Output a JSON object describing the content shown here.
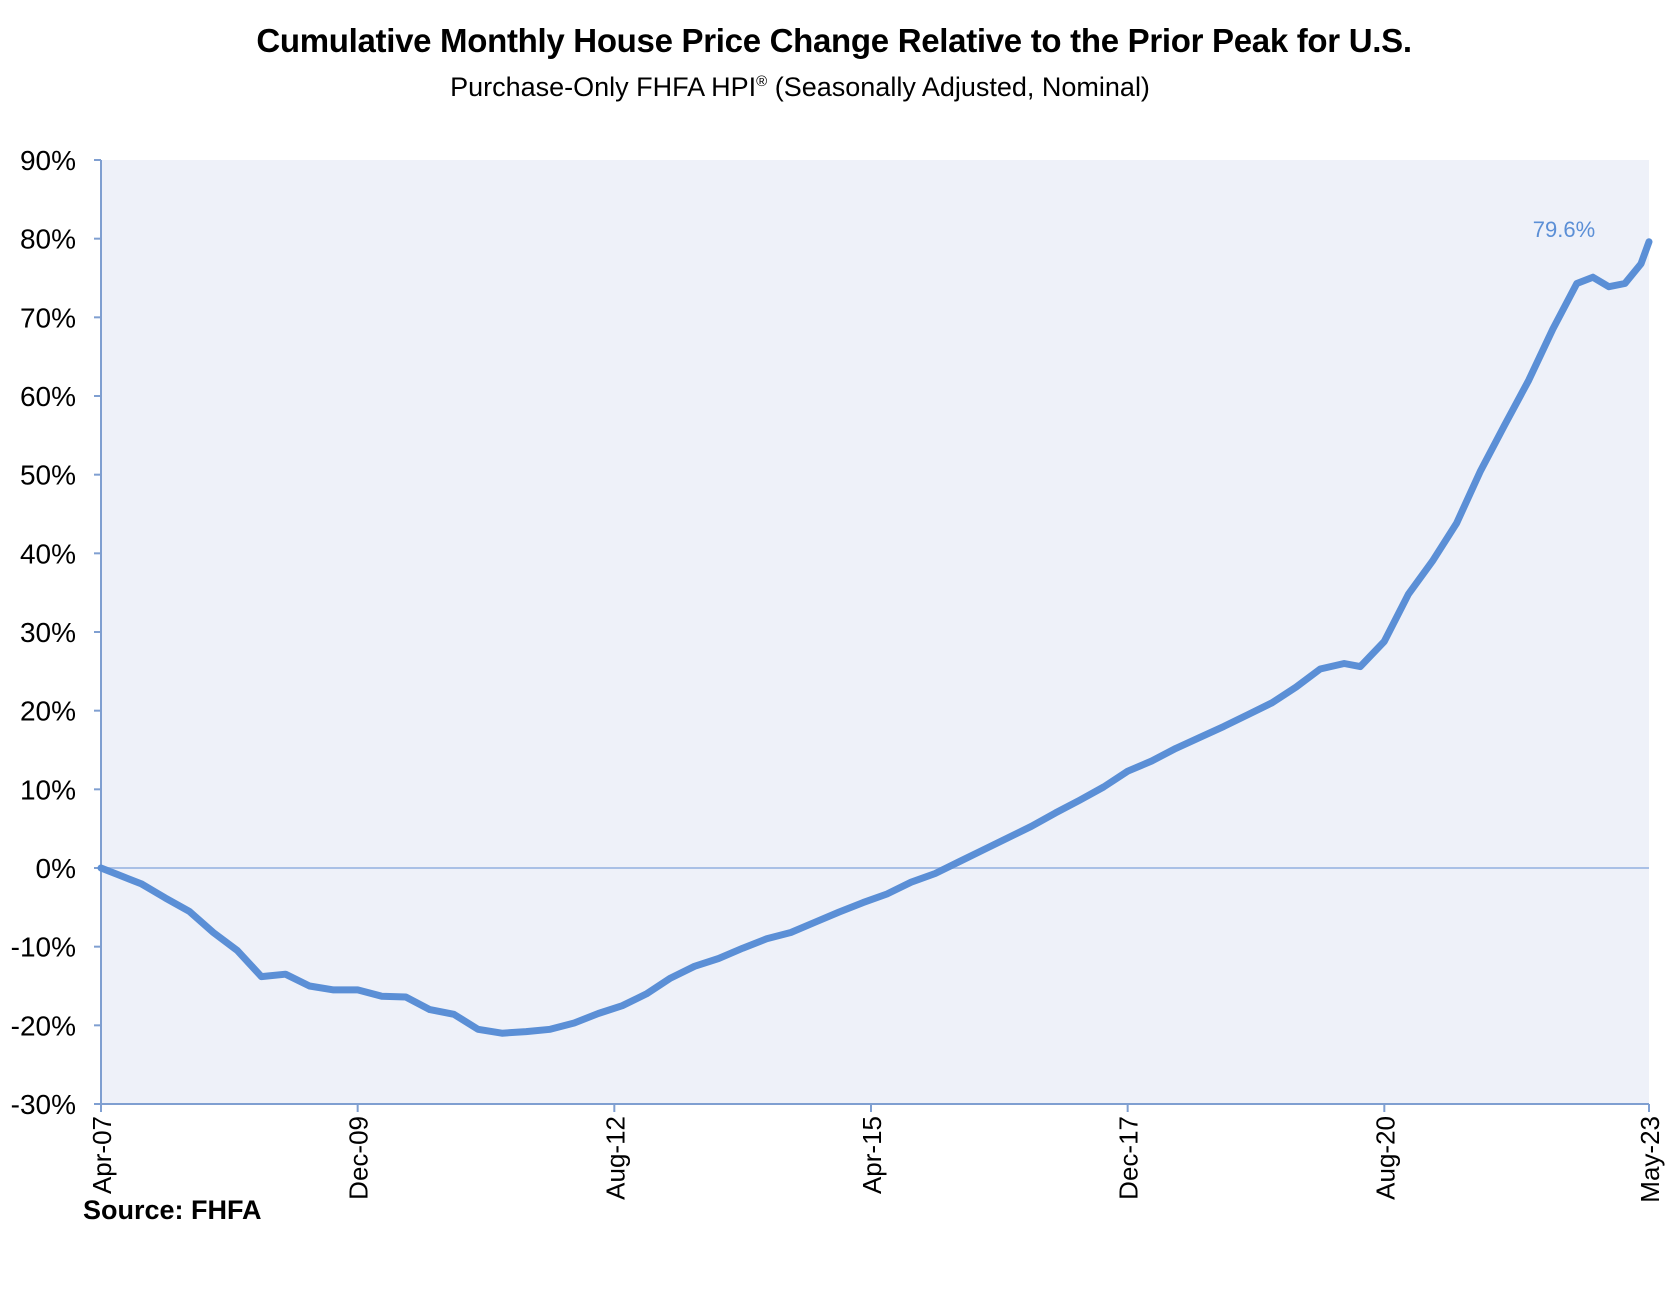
{
  "chart_data": {
    "type": "line",
    "title": "Cumulative Monthly House Price Change Relative to the Prior Peak for U.S.",
    "subtitle_main": "Purchase-Only FHFA HPI",
    "subtitle_mark": "®",
    "subtitle_rest": " (Seasonally Adjusted, Nominal)",
    "xlabel": "",
    "ylabel": "",
    "ylim": [
      -30,
      90
    ],
    "yticks": [
      90,
      80,
      70,
      60,
      50,
      40,
      30,
      20,
      10,
      0,
      -10,
      -20,
      -30
    ],
    "ytick_labels": [
      "90%",
      "80%",
      "70%",
      "60%",
      "50%",
      "40%",
      "30%",
      "20%",
      "10%",
      "0%",
      "-10%",
      "-20%",
      "-30%"
    ],
    "xlim": [
      "2007-04",
      "2023-05"
    ],
    "xticks": [
      "2007-04",
      "2009-12",
      "2012-08",
      "2015-04",
      "2017-12",
      "2020-08",
      "2023-05"
    ],
    "xtick_labels": [
      "Apr-07",
      "Dec-09",
      "Aug-12",
      "Apr-15",
      "Dec-17",
      "Aug-20",
      "May-23"
    ],
    "grid": false,
    "legend": "none",
    "annotation": {
      "text": "79.6%",
      "date": "2023-05",
      "value": 79.6
    },
    "series": [
      {
        "color": "#5b8fd6",
        "points": [
          [
            "2007-04",
            0.0
          ],
          [
            "2007-06",
            -0.8
          ],
          [
            "2007-09",
            -2.0
          ],
          [
            "2007-12",
            -3.8
          ],
          [
            "2008-03",
            -5.5
          ],
          [
            "2008-06",
            -8.2
          ],
          [
            "2008-09",
            -10.5
          ],
          [
            "2008-12",
            -13.8
          ],
          [
            "2009-03",
            -13.5
          ],
          [
            "2009-06",
            -15.0
          ],
          [
            "2009-09",
            -15.5
          ],
          [
            "2009-12",
            -15.5
          ],
          [
            "2010-03",
            -16.3
          ],
          [
            "2010-06",
            -16.4
          ],
          [
            "2010-09",
            -18.0
          ],
          [
            "2010-12",
            -18.6
          ],
          [
            "2011-03",
            -20.5
          ],
          [
            "2011-06",
            -21.0
          ],
          [
            "2011-09",
            -20.8
          ],
          [
            "2011-12",
            -20.5
          ],
          [
            "2012-03",
            -19.7
          ],
          [
            "2012-06",
            -18.5
          ],
          [
            "2012-09",
            -17.5
          ],
          [
            "2012-12",
            -16.0
          ],
          [
            "2013-03",
            -14.0
          ],
          [
            "2013-06",
            -12.5
          ],
          [
            "2013-09",
            -11.5
          ],
          [
            "2013-12",
            -10.2
          ],
          [
            "2014-03",
            -9.0
          ],
          [
            "2014-06",
            -8.2
          ],
          [
            "2014-09",
            -6.9
          ],
          [
            "2014-12",
            -5.6
          ],
          [
            "2015-03",
            -4.4
          ],
          [
            "2015-06",
            -3.3
          ],
          [
            "2015-09",
            -1.8
          ],
          [
            "2015-12",
            -0.7
          ],
          [
            "2016-03",
            0.8
          ],
          [
            "2016-06",
            2.3
          ],
          [
            "2016-09",
            3.8
          ],
          [
            "2016-12",
            5.3
          ],
          [
            "2017-03",
            7.0
          ],
          [
            "2017-06",
            8.6
          ],
          [
            "2017-09",
            10.3
          ],
          [
            "2017-12",
            12.3
          ],
          [
            "2018-03",
            13.6
          ],
          [
            "2018-06",
            15.2
          ],
          [
            "2018-09",
            16.6
          ],
          [
            "2018-12",
            18.0
          ],
          [
            "2019-03",
            19.5
          ],
          [
            "2019-06",
            21.0
          ],
          [
            "2019-09",
            23.0
          ],
          [
            "2019-12",
            25.3
          ],
          [
            "2020-03",
            26.0
          ],
          [
            "2020-05",
            25.6
          ],
          [
            "2020-08",
            28.8
          ],
          [
            "2020-11",
            34.8
          ],
          [
            "2021-02",
            39.0
          ],
          [
            "2021-05",
            43.8
          ],
          [
            "2021-08",
            50.5
          ],
          [
            "2021-11",
            56.3
          ],
          [
            "2022-02",
            62.0
          ],
          [
            "2022-05",
            68.5
          ],
          [
            "2022-08",
            74.3
          ],
          [
            "2022-10",
            75.1
          ],
          [
            "2022-12",
            73.9
          ],
          [
            "2023-02",
            74.3
          ],
          [
            "2023-04",
            76.8
          ],
          [
            "2023-05",
            79.6
          ]
        ]
      }
    ]
  },
  "source": "Source: FHFA"
}
